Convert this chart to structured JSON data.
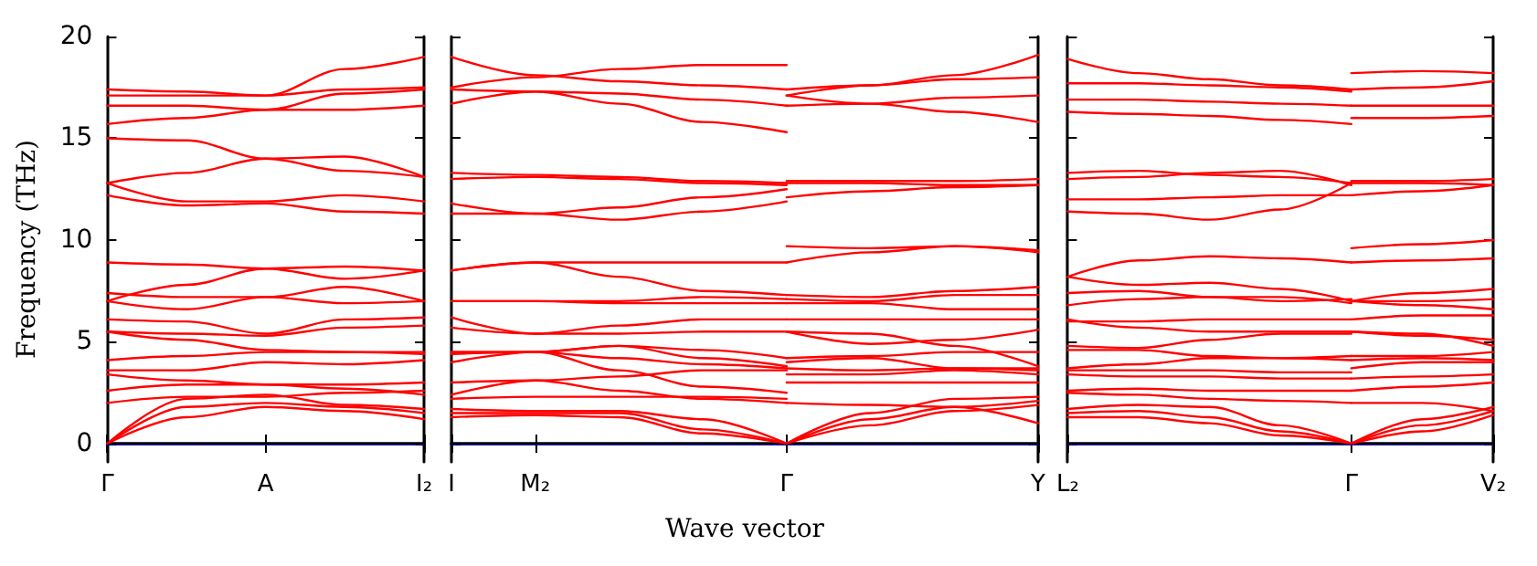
{
  "chart_data": [
    {
      "type": "line",
      "ylabel": "Frequency (THz)",
      "categories": [
        "Γ",
        null,
        "A",
        null,
        "I₂"
      ],
      "ylim": [
        -0.9,
        20
      ],
      "yticks": [
        0,
        5,
        10,
        15,
        20
      ],
      "marker": "none",
      "ref_lines": [
        {
          "axis": "y",
          "value": 0,
          "color": "#0000ff",
          "line_style": "dotted"
        }
      ],
      "series": [
        {
          "color": "#ff0000",
          "values": [
            17.4,
            17.3,
            17.1,
            18.4,
            19.0
          ]
        },
        {
          "color": "#ff0000",
          "values": [
            17.1,
            17.1,
            17.1,
            17.4,
            17.5
          ]
        },
        {
          "color": "#ff0000",
          "values": [
            16.6,
            16.6,
            16.4,
            16.4,
            16.6
          ]
        },
        {
          "color": "#ff0000",
          "values": [
            15.7,
            16.0,
            16.4,
            17.2,
            17.4
          ]
        },
        {
          "color": "#ff0000",
          "values": [
            15.0,
            14.9,
            14.0,
            13.4,
            13.1
          ]
        },
        {
          "color": "#ff0000",
          "values": [
            12.8,
            13.3,
            14.0,
            14.1,
            13.1
          ]
        },
        {
          "color": "#ff0000",
          "values": [
            12.8,
            11.9,
            11.9,
            12.2,
            11.9
          ]
        },
        {
          "color": "#ff0000",
          "values": [
            12.2,
            11.7,
            11.8,
            11.4,
            11.3
          ]
        },
        {
          "color": "#ff0000",
          "values": [
            8.9,
            8.8,
            8.6,
            8.1,
            8.5
          ]
        },
        {
          "color": "#ff0000",
          "values": [
            7.0,
            7.8,
            8.6,
            8.7,
            8.5
          ]
        },
        {
          "color": "#ff0000",
          "values": [
            7.4,
            7.2,
            7.2,
            7.7,
            7.0
          ]
        },
        {
          "color": "#ff0000",
          "values": [
            7.0,
            6.6,
            7.2,
            6.9,
            7.0
          ]
        },
        {
          "color": "#ff0000",
          "values": [
            6.1,
            6.0,
            5.4,
            6.1,
            6.2
          ]
        },
        {
          "color": "#ff0000",
          "values": [
            5.5,
            5.4,
            5.3,
            5.7,
            5.8
          ]
        },
        {
          "color": "#ff0000",
          "values": [
            5.5,
            5.1,
            4.6,
            4.5,
            4.5
          ]
        },
        {
          "color": "#ff0000",
          "values": [
            4.1,
            4.3,
            4.5,
            4.5,
            4.4
          ]
        },
        {
          "color": "#ff0000",
          "values": [
            3.6,
            3.6,
            4.0,
            3.9,
            4.1
          ]
        },
        {
          "color": "#ff0000",
          "values": [
            3.4,
            3.1,
            2.9,
            2.9,
            3.0
          ]
        },
        {
          "color": "#ff0000",
          "values": [
            2.6,
            2.9,
            2.9,
            2.7,
            2.4
          ]
        },
        {
          "color": "#ff0000",
          "values": [
            2.0,
            2.3,
            2.3,
            2.5,
            2.6
          ]
        },
        {
          "color": "#ff0000",
          "values": [
            0,
            2.2,
            2.4,
            1.9,
            1.7
          ]
        },
        {
          "color": "#ff0000",
          "values": [
            0,
            1.8,
            2.0,
            1.8,
            1.5
          ]
        },
        {
          "color": "#ff0000",
          "values": [
            0,
            1.3,
            1.8,
            1.6,
            1.2
          ]
        }
      ]
    },
    {
      "type": "line",
      "xlabel": "Wave vector",
      "categories": [
        "I",
        "M₂",
        null,
        null,
        "Γ",
        null,
        null,
        "Y"
      ],
      "ylim": [
        -0.9,
        20
      ],
      "yticks": [
        0,
        5,
        10,
        15,
        20
      ],
      "tick_labels": "x",
      "marker": "none",
      "ref_lines": [
        {
          "axis": "y",
          "value": 0,
          "color": "#0000ff",
          "line_style": "dotted"
        }
      ],
      "series": [
        {
          "color": "#ff0000",
          "values": [
            19.0,
            18.1,
            17.8,
            17.6,
            17.4,
            null,
            null,
            null
          ]
        },
        {
          "color": "#ff0000",
          "values": [
            17.5,
            18.0,
            18.4,
            18.6,
            18.6,
            null,
            null,
            null
          ]
        },
        {
          "color": "#ff0000",
          "values": [
            17.4,
            17.3,
            17.2,
            16.9,
            16.6,
            null,
            null,
            null
          ]
        },
        {
          "color": "#ff0000",
          "values": [
            16.7,
            17.3,
            16.7,
            15.8,
            15.3,
            null,
            null,
            null
          ]
        },
        {
          "color": "#ff0000",
          "values": [
            13.3,
            13.2,
            13.1,
            12.9,
            12.8,
            null,
            null,
            null
          ]
        },
        {
          "color": "#ff0000",
          "values": [
            13.0,
            13.1,
            13.0,
            12.8,
            12.7,
            null,
            null,
            null
          ]
        },
        {
          "color": "#ff0000",
          "values": [
            11.8,
            11.3,
            11.6,
            12.1,
            12.5,
            null,
            null,
            null
          ]
        },
        {
          "color": "#ff0000",
          "values": [
            11.3,
            11.3,
            11.0,
            11.4,
            11.9,
            null,
            null,
            null
          ]
        },
        {
          "color": "#ff0000",
          "values": [
            8.5,
            8.9,
            8.9,
            8.9,
            8.9,
            null,
            null,
            null
          ]
        },
        {
          "color": "#ff0000",
          "values": [
            8.5,
            8.9,
            8.2,
            7.5,
            7.3,
            null,
            null,
            null
          ]
        },
        {
          "color": "#ff0000",
          "values": [
            7.0,
            7.0,
            7.0,
            7.2,
            7.1,
            null,
            null,
            null
          ]
        },
        {
          "color": "#ff0000",
          "values": [
            7.0,
            7.0,
            6.9,
            6.9,
            6.9,
            null,
            null,
            null
          ]
        },
        {
          "color": "#ff0000",
          "values": [
            6.2,
            5.4,
            5.8,
            6.1,
            6.1,
            null,
            null,
            null
          ]
        },
        {
          "color": "#ff0000",
          "values": [
            5.7,
            5.4,
            5.4,
            5.5,
            5.5,
            null,
            null,
            null
          ]
        },
        {
          "color": "#ff0000",
          "values": [
            4.5,
            4.5,
            4.8,
            4.6,
            4.2,
            null,
            null,
            null
          ]
        },
        {
          "color": "#ff0000",
          "values": [
            4.5,
            4.5,
            4.2,
            3.9,
            3.7,
            null,
            null,
            null
          ]
        },
        {
          "color": "#ff0000",
          "values": [
            4.0,
            4.5,
            4.8,
            4.2,
            3.8,
            null,
            null,
            null
          ]
        },
        {
          "color": "#ff0000",
          "values": [
            4.4,
            4.5,
            3.6,
            2.8,
            2.5,
            null,
            null,
            null
          ]
        },
        {
          "color": "#ff0000",
          "values": [
            3.0,
            3.1,
            3.3,
            3.6,
            3.6,
            null,
            null,
            null
          ]
        },
        {
          "color": "#ff0000",
          "values": [
            2.4,
            3.1,
            2.6,
            2.2,
            2.0,
            null,
            null,
            null
          ]
        },
        {
          "color": "#ff0000",
          "values": [
            2.2,
            2.3,
            2.3,
            2.3,
            2.2,
            null,
            null,
            null
          ]
        },
        {
          "color": "#ff0000",
          "values": [
            1.7,
            1.6,
            1.6,
            1.2,
            0,
            null,
            null,
            null
          ]
        },
        {
          "color": "#ff0000",
          "values": [
            1.5,
            1.5,
            1.5,
            0.7,
            0,
            null,
            null,
            null
          ]
        },
        {
          "color": "#ff0000",
          "values": [
            1.3,
            1.4,
            1.3,
            0.5,
            0,
            null,
            null,
            null
          ]
        },
        {
          "color": "#ff0000",
          "values": [
            null,
            null,
            null,
            null,
            17.4,
            17.6,
            18.1,
            19.1
          ]
        },
        {
          "color": "#ff0000",
          "values": [
            null,
            null,
            null,
            null,
            17.1,
            17.6,
            17.9,
            18.0
          ]
        },
        {
          "color": "#ff0000",
          "values": [
            null,
            null,
            null,
            null,
            17.1,
            16.7,
            16.3,
            15.8
          ]
        },
        {
          "color": "#ff0000",
          "values": [
            null,
            null,
            null,
            null,
            16.6,
            16.7,
            17.0,
            17.1
          ]
        },
        {
          "color": "#ff0000",
          "values": [
            null,
            null,
            null,
            null,
            12.8,
            12.8,
            12.7,
            12.7
          ]
        },
        {
          "color": "#ff0000",
          "values": [
            null,
            null,
            null,
            null,
            12.9,
            12.9,
            12.9,
            13.0
          ]
        },
        {
          "color": "#ff0000",
          "values": [
            null,
            null,
            null,
            null,
            12.1,
            12.4,
            12.6,
            12.7
          ]
        },
        {
          "color": "#ff0000",
          "values": [
            null,
            null,
            null,
            null,
            9.7,
            9.6,
            9.7,
            9.5
          ]
        },
        {
          "color": "#ff0000",
          "values": [
            null,
            null,
            null,
            null,
            8.9,
            9.4,
            9.7,
            9.4
          ]
        },
        {
          "color": "#ff0000",
          "values": [
            null,
            null,
            null,
            null,
            7.3,
            7.2,
            7.5,
            7.7
          ]
        },
        {
          "color": "#ff0000",
          "values": [
            null,
            null,
            null,
            null,
            7.1,
            7.0,
            7.3,
            7.3
          ]
        },
        {
          "color": "#ff0000",
          "values": [
            null,
            null,
            null,
            null,
            6.9,
            6.9,
            6.6,
            6.6
          ]
        },
        {
          "color": "#ff0000",
          "values": [
            null,
            null,
            null,
            null,
            6.1,
            6.1,
            6.1,
            6.1
          ]
        },
        {
          "color": "#ff0000",
          "values": [
            null,
            null,
            null,
            null,
            5.5,
            5.4,
            4.8,
            3.8
          ]
        },
        {
          "color": "#ff0000",
          "values": [
            null,
            null,
            null,
            null,
            5.5,
            4.9,
            5.1,
            5.6
          ]
        },
        {
          "color": "#ff0000",
          "values": [
            null,
            null,
            null,
            null,
            4.2,
            4.3,
            4.5,
            4.5
          ]
        },
        {
          "color": "#ff0000",
          "values": [
            null,
            null,
            null,
            null,
            4.0,
            4.2,
            3.7,
            3.6
          ]
        },
        {
          "color": "#ff0000",
          "values": [
            null,
            null,
            null,
            null,
            3.7,
            3.6,
            3.7,
            3.7
          ]
        },
        {
          "color": "#ff0000",
          "values": [
            null,
            null,
            null,
            null,
            3.4,
            3.4,
            3.6,
            3.4
          ]
        },
        {
          "color": "#ff0000",
          "values": [
            null,
            null,
            null,
            null,
            3.0,
            3.0,
            3.0,
            3.0
          ]
        },
        {
          "color": "#ff0000",
          "values": [
            null,
            null,
            null,
            null,
            2.0,
            1.9,
            1.8,
            1.0
          ]
        },
        {
          "color": "#ff0000",
          "values": [
            null,
            null,
            null,
            null,
            0,
            1.5,
            2.2,
            2.3
          ]
        },
        {
          "color": "#ff0000",
          "values": [
            null,
            null,
            null,
            null,
            0,
            1.2,
            1.8,
            2.1
          ]
        },
        {
          "color": "#ff0000",
          "values": [
            null,
            null,
            null,
            null,
            0,
            0.9,
            1.6,
            1.9
          ]
        }
      ]
    },
    {
      "type": "line",
      "categories": [
        "L₂",
        null,
        null,
        null,
        "Γ",
        null,
        "V₂"
      ],
      "ylim": [
        -0.9,
        20
      ],
      "yticks": [
        0,
        5,
        10,
        15,
        20
      ],
      "tick_labels": "x",
      "marker": "none",
      "ref_lines": [
        {
          "axis": "y",
          "value": 0,
          "color": "#0000ff",
          "line_style": "dotted"
        }
      ],
      "series": [
        {
          "color": "#ff0000",
          "values": [
            18.9,
            18.2,
            17.9,
            17.6,
            17.4,
            null,
            null
          ]
        },
        {
          "color": "#ff0000",
          "values": [
            17.7,
            17.7,
            17.6,
            17.5,
            17.3,
            null,
            null
          ]
        },
        {
          "color": "#ff0000",
          "values": [
            16.9,
            16.9,
            16.8,
            16.7,
            16.6,
            null,
            null
          ]
        },
        {
          "color": "#ff0000",
          "values": [
            16.3,
            16.2,
            16.1,
            15.9,
            15.7,
            null,
            null
          ]
        },
        {
          "color": "#ff0000",
          "values": [
            13.3,
            13.4,
            13.2,
            13.1,
            12.8,
            null,
            null
          ]
        },
        {
          "color": "#ff0000",
          "values": [
            13.0,
            13.1,
            13.3,
            13.4,
            12.7,
            null,
            null
          ]
        },
        {
          "color": "#ff0000",
          "values": [
            12.0,
            12.0,
            12.1,
            12.2,
            12.2,
            null,
            null
          ]
        },
        {
          "color": "#ff0000",
          "values": [
            11.4,
            11.3,
            11.0,
            11.5,
            12.8,
            null,
            null
          ]
        },
        {
          "color": "#ff0000",
          "values": [
            8.2,
            9.0,
            9.2,
            9.1,
            8.9,
            null,
            null
          ]
        },
        {
          "color": "#ff0000",
          "values": [
            8.2,
            7.8,
            7.9,
            7.6,
            7.0,
            null,
            null
          ]
        },
        {
          "color": "#ff0000",
          "values": [
            7.4,
            7.5,
            7.2,
            7.0,
            7.1,
            null,
            null
          ]
        },
        {
          "color": "#ff0000",
          "values": [
            6.8,
            7.1,
            7.2,
            7.2,
            6.9,
            null,
            null
          ]
        },
        {
          "color": "#ff0000",
          "values": [
            6.1,
            5.7,
            5.5,
            5.5,
            5.5,
            null,
            null
          ]
        },
        {
          "color": "#ff0000",
          "values": [
            6.0,
            6.0,
            6.1,
            6.1,
            6.1,
            null,
            null
          ]
        },
        {
          "color": "#ff0000",
          "values": [
            4.8,
            4.7,
            5.1,
            5.4,
            5.4,
            null,
            null
          ]
        },
        {
          "color": "#ff0000",
          "values": [
            4.6,
            4.6,
            4.3,
            4.2,
            4.1,
            null,
            null
          ]
        },
        {
          "color": "#ff0000",
          "values": [
            3.7,
            3.9,
            4.2,
            4.2,
            4.3,
            null,
            null
          ]
        },
        {
          "color": "#ff0000",
          "values": [
            3.6,
            3.6,
            3.6,
            3.5,
            3.5,
            null,
            null
          ]
        },
        {
          "color": "#ff0000",
          "values": [
            3.4,
            3.3,
            3.3,
            3.2,
            3.2,
            null,
            null
          ]
        },
        {
          "color": "#ff0000",
          "values": [
            2.6,
            2.7,
            2.6,
            2.6,
            2.6,
            null,
            null
          ]
        },
        {
          "color": "#ff0000",
          "values": [
            2.5,
            2.4,
            2.2,
            2.1,
            2.0,
            null,
            null
          ]
        },
        {
          "color": "#ff0000",
          "values": [
            1.7,
            1.9,
            1.8,
            0.9,
            0,
            null,
            null
          ]
        },
        {
          "color": "#ff0000",
          "values": [
            1.5,
            1.6,
            1.3,
            0.6,
            0,
            null,
            null
          ]
        },
        {
          "color": "#ff0000",
          "values": [
            1.3,
            1.3,
            1.0,
            0.4,
            0,
            null,
            null
          ]
        },
        {
          "color": "#ff0000",
          "values": [
            null,
            null,
            null,
            null,
            18.2,
            18.3,
            18.2
          ]
        },
        {
          "color": "#ff0000",
          "values": [
            null,
            null,
            null,
            null,
            17.4,
            17.5,
            17.8
          ]
        },
        {
          "color": "#ff0000",
          "values": [
            null,
            null,
            null,
            null,
            16.6,
            16.6,
            16.6
          ]
        },
        {
          "color": "#ff0000",
          "values": [
            null,
            null,
            null,
            null,
            16.0,
            16.0,
            16.1
          ]
        },
        {
          "color": "#ff0000",
          "values": [
            null,
            null,
            null,
            null,
            12.8,
            12.8,
            12.7
          ]
        },
        {
          "color": "#ff0000",
          "values": [
            null,
            null,
            null,
            null,
            12.9,
            12.9,
            13.0
          ]
        },
        {
          "color": "#ff0000",
          "values": [
            null,
            null,
            null,
            null,
            12.2,
            12.4,
            12.7
          ]
        },
        {
          "color": "#ff0000",
          "values": [
            null,
            null,
            null,
            null,
            9.6,
            9.8,
            10.0
          ]
        },
        {
          "color": "#ff0000",
          "values": [
            null,
            null,
            null,
            null,
            8.9,
            9.0,
            9.1
          ]
        },
        {
          "color": "#ff0000",
          "values": [
            null,
            null,
            null,
            null,
            7.0,
            7.4,
            7.6
          ]
        },
        {
          "color": "#ff0000",
          "values": [
            null,
            null,
            null,
            null,
            7.0,
            7.0,
            7.1
          ]
        },
        {
          "color": "#ff0000",
          "values": [
            null,
            null,
            null,
            null,
            7.0,
            6.8,
            6.6
          ]
        },
        {
          "color": "#ff0000",
          "values": [
            null,
            null,
            null,
            null,
            6.1,
            6.3,
            6.3
          ]
        },
        {
          "color": "#ff0000",
          "values": [
            null,
            null,
            null,
            null,
            5.5,
            5.4,
            4.8
          ]
        },
        {
          "color": "#ff0000",
          "values": [
            null,
            null,
            null,
            null,
            5.5,
            5.3,
            5.1
          ]
        },
        {
          "color": "#ff0000",
          "values": [
            null,
            null,
            null,
            null,
            4.3,
            4.3,
            4.5
          ]
        },
        {
          "color": "#ff0000",
          "values": [
            null,
            null,
            null,
            null,
            4.1,
            4.2,
            4.1
          ]
        },
        {
          "color": "#ff0000",
          "values": [
            null,
            null,
            null,
            null,
            3.7,
            4.0,
            4.0
          ]
        },
        {
          "color": "#ff0000",
          "values": [
            null,
            null,
            null,
            null,
            3.2,
            3.3,
            3.4
          ]
        },
        {
          "color": "#ff0000",
          "values": [
            null,
            null,
            null,
            null,
            2.6,
            2.8,
            3.0
          ]
        },
        {
          "color": "#ff0000",
          "values": [
            null,
            null,
            null,
            null,
            2.0,
            2.0,
            1.6
          ]
        },
        {
          "color": "#ff0000",
          "values": [
            null,
            null,
            null,
            null,
            0,
            1.2,
            1.8
          ]
        },
        {
          "color": "#ff0000",
          "values": [
            null,
            null,
            null,
            null,
            0,
            0.9,
            1.6
          ]
        },
        {
          "color": "#ff0000",
          "values": [
            null,
            null,
            null,
            null,
            0,
            0.6,
            1.4
          ]
        }
      ]
    }
  ]
}
